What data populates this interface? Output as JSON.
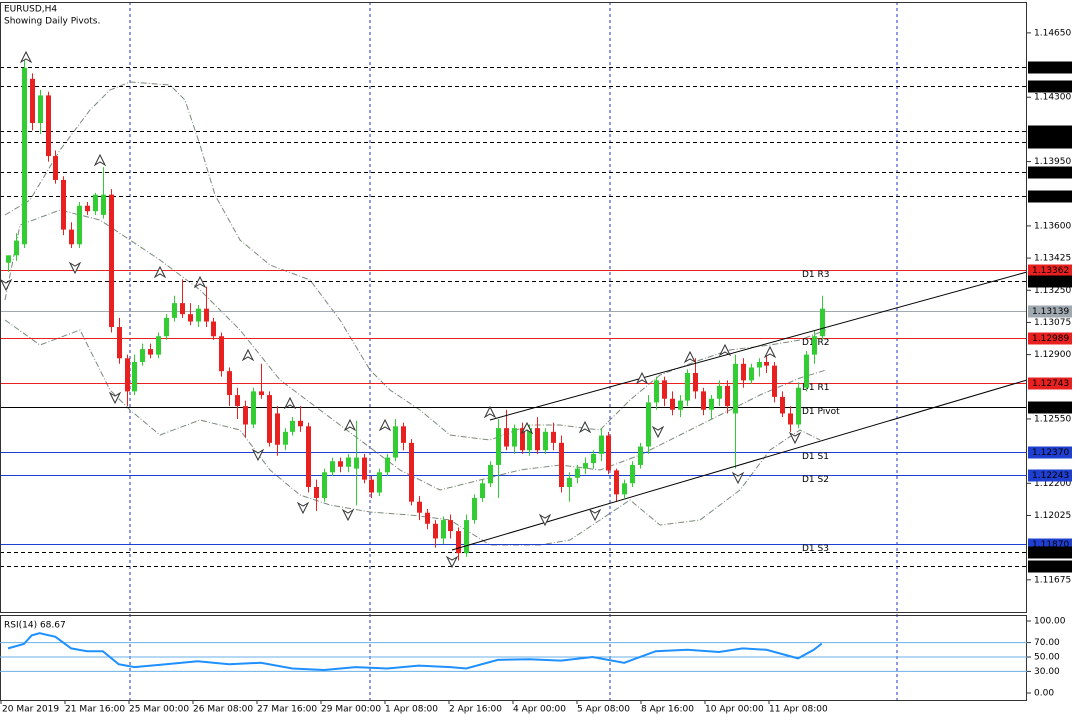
{
  "chart_data": {
    "type": "candlestick",
    "title": "EURUSD,H4",
    "subtitle": "Showing Daily Pivots.",
    "up_color": "#32cd32",
    "down_color": "#e8201f",
    "ylim": [
      1.115,
      1.14818
    ],
    "yticks": [
      {
        "value": 1.1465,
        "label": "1.14650"
      },
      {
        "value": 1.143,
        "label": "1.14300"
      },
      {
        "value": 1.1395,
        "label": "1.13950"
      },
      {
        "value": 1.136,
        "label": "1.13600"
      },
      {
        "value": 1.13425,
        "label": "1.13425"
      },
      {
        "value": 1.1325,
        "label": "1.13250"
      },
      {
        "value": 1.13075,
        "label": "1.13075"
      },
      {
        "value": 1.129,
        "label": "1.12900"
      },
      {
        "value": 1.1255,
        "label": "1.12550"
      },
      {
        "value": 1.122,
        "label": "1.12200"
      },
      {
        "value": 1.12025,
        "label": "1.12025"
      },
      {
        "value": 1.11675,
        "label": "1.11675"
      }
    ],
    "xlabels": [
      "20 Mar 2019",
      "21 Mar 16:00",
      "25 Mar 00:00",
      "26 Mar 08:00",
      "27 Mar 16:00",
      "29 Mar 00:00",
      "1 Apr 08:00",
      "2 Apr 16:00",
      "4 Apr 00:00",
      "5 Apr 08:00",
      "8 Apr 16:00",
      "10 Apr 00:00",
      "11 Apr 08:00"
    ],
    "levels": [
      {
        "value": 1.14464,
        "label": "1.14464",
        "color": "#000000",
        "style": "dash"
      },
      {
        "value": 1.14362,
        "label": "1.14362",
        "color": "#000000",
        "style": "dash"
      },
      {
        "value": 1.14115,
        "label": "1.14115",
        "color": "#000000",
        "style": "dash"
      },
      {
        "value": 1.14054,
        "label": "1.14054",
        "color": "#000000",
        "style": "dash"
      },
      {
        "value": 1.13895,
        "label": "1.13895",
        "color": "#000000",
        "style": "dash"
      },
      {
        "value": 1.13765,
        "label": "1.13765",
        "color": "#000000",
        "style": "dash"
      },
      {
        "value": 1.13362,
        "label": "1.13362",
        "color": "#e8201f",
        "style": "solid",
        "name": "D1 R3"
      },
      {
        "value": 1.13301,
        "label": "1.13301",
        "color": "#000000",
        "style": "dash"
      },
      {
        "value": 1.13139,
        "label": "1.13139",
        "color": "#a0a8b0",
        "style": "solid"
      },
      {
        "value": 1.12989,
        "label": "1.12989",
        "color": "#e8201f",
        "style": "solid",
        "name": "D1 R2"
      },
      {
        "value": 1.12743,
        "label": "1.12743",
        "color": "#e8201f",
        "style": "solid",
        "name": "D1 R1"
      },
      {
        "value": 1.12616,
        "label": "1.12616",
        "color": "#000000",
        "style": "solid",
        "name": "D1 Pivot"
      },
      {
        "value": 1.1237,
        "label": "1.12370",
        "color": "#1f3fd0",
        "style": "solid",
        "name": "D1 S1"
      },
      {
        "value": 1.12243,
        "label": "1.12243",
        "color": "#1f3fd0",
        "style": "solid",
        "name": "D1 S2"
      },
      {
        "value": 1.1187,
        "label": "1.11870",
        "color": "#1f3fd0",
        "style": "solid",
        "name": "D1 S3"
      },
      {
        "value": 1.11826,
        "label": "1.11826",
        "color": "#000000",
        "style": "dash"
      },
      {
        "value": 1.11752,
        "label": "1.11752",
        "color": "#000000",
        "style": "dash"
      }
    ],
    "candles": [
      [
        1.134,
        1.1344,
        1.1335,
        1.1344
      ],
      [
        1.1344,
        1.1356,
        1.1341,
        1.1352
      ],
      [
        1.135,
        1.145,
        1.1348,
        1.1446
      ],
      [
        1.144,
        1.1443,
        1.1412,
        1.1416
      ],
      [
        1.1416,
        1.1434,
        1.141,
        1.1431
      ],
      [
        1.1431,
        1.1433,
        1.1395,
        1.1398
      ],
      [
        1.1398,
        1.1401,
        1.1383,
        1.1385
      ],
      [
        1.1385,
        1.1387,
        1.1355,
        1.1358
      ],
      [
        1.1358,
        1.1362,
        1.1348,
        1.135
      ],
      [
        1.135,
        1.1373,
        1.1348,
        1.1371
      ],
      [
        1.1371,
        1.1373,
        1.1366,
        1.1368
      ],
      [
        1.1368,
        1.1378,
        1.1366,
        1.1377
      ],
      [
        1.1366,
        1.1392,
        1.1364,
        1.1377
      ],
      [
        1.1377,
        1.138,
        1.1302,
        1.1305
      ],
      [
        1.1305,
        1.131,
        1.1285,
        1.1288
      ],
      [
        1.1288,
        1.129,
        1.1262,
        1.127
      ],
      [
        1.127,
        1.129,
        1.1268,
        1.1286
      ],
      [
        1.1286,
        1.1296,
        1.1284,
        1.1293
      ],
      [
        1.1293,
        1.1296,
        1.1288,
        1.129
      ],
      [
        1.129,
        1.1302,
        1.1288,
        1.13
      ],
      [
        1.13,
        1.1312,
        1.1298,
        1.131
      ],
      [
        1.131,
        1.1322,
        1.1308,
        1.1318
      ],
      [
        1.1318,
        1.1331,
        1.131,
        1.1312
      ],
      [
        1.1312,
        1.1318,
        1.1306,
        1.1308
      ],
      [
        1.1308,
        1.1317,
        1.1305,
        1.1315
      ],
      [
        1.1315,
        1.1327,
        1.1305,
        1.1308
      ],
      [
        1.1308,
        1.131,
        1.1298,
        1.13
      ],
      [
        1.13,
        1.1302,
        1.1278,
        1.1281
      ],
      [
        1.1281,
        1.1283,
        1.1262,
        1.1268
      ],
      [
        1.1268,
        1.1272,
        1.1255,
        1.1262
      ],
      [
        1.1262,
        1.1265,
        1.1245,
        1.1252
      ],
      [
        1.1252,
        1.1272,
        1.125,
        1.127
      ],
      [
        1.127,
        1.1285,
        1.1266,
        1.1268
      ],
      [
        1.1268,
        1.127,
        1.124,
        1.1242
      ],
      [
        1.1258,
        1.1262,
        1.1235,
        1.1241
      ],
      [
        1.1241,
        1.125,
        1.1238,
        1.1248
      ],
      [
        1.1248,
        1.1256,
        1.1246,
        1.1254
      ],
      [
        1.1254,
        1.1262,
        1.1248,
        1.1251
      ],
      [
        1.1251,
        1.1253,
        1.1215,
        1.1218
      ],
      [
        1.1218,
        1.1222,
        1.1205,
        1.1212
      ],
      [
        1.1212,
        1.1228,
        1.121,
        1.1226
      ],
      [
        1.1226,
        1.1234,
        1.1224,
        1.1232
      ],
      [
        1.1232,
        1.1234,
        1.1226,
        1.1229
      ],
      [
        1.1229,
        1.1236,
        1.1226,
        1.1234
      ],
      [
        1.1228,
        1.1254,
        1.1208,
        1.1234
      ],
      [
        1.1234,
        1.1236,
        1.122,
        1.1222
      ],
      [
        1.1222,
        1.1224,
        1.1212,
        1.1215
      ],
      [
        1.1215,
        1.1228,
        1.1213,
        1.1226
      ],
      [
        1.1226,
        1.1236,
        1.1224,
        1.1234
      ],
      [
        1.1234,
        1.1255,
        1.1232,
        1.1251
      ],
      [
        1.1251,
        1.1253,
        1.1238,
        1.1242
      ],
      [
        1.1242,
        1.1244,
        1.1208,
        1.121
      ],
      [
        1.121,
        1.1213,
        1.12,
        1.1204
      ],
      [
        1.1204,
        1.1206,
        1.1195,
        1.1198
      ],
      [
        1.1198,
        1.12,
        1.1185,
        1.119
      ],
      [
        1.119,
        1.1202,
        1.1187,
        1.12
      ],
      [
        1.12,
        1.1203,
        1.119,
        1.1194
      ],
      [
        1.1194,
        1.1196,
        1.1178,
        1.1182
      ],
      [
        1.1182,
        1.1203,
        1.118,
        1.12
      ],
      [
        1.12,
        1.1214,
        1.1198,
        1.1212
      ],
      [
        1.1212,
        1.1222,
        1.121,
        1.122
      ],
      [
        1.122,
        1.1232,
        1.1218,
        1.123
      ],
      [
        1.123,
        1.1255,
        1.1212,
        1.125
      ],
      [
        1.125,
        1.126,
        1.1238,
        1.124
      ],
      [
        1.124,
        1.1252,
        1.1236,
        1.125
      ],
      [
        1.125,
        1.1253,
        1.1236,
        1.1238
      ],
      [
        1.1238,
        1.1252,
        1.1235,
        1.125
      ],
      [
        1.125,
        1.1256,
        1.1236,
        1.1238
      ],
      [
        1.1238,
        1.125,
        1.1236,
        1.1248
      ],
      [
        1.1248,
        1.1253,
        1.1238,
        1.1242
      ],
      [
        1.1242,
        1.1246,
        1.1215,
        1.1218
      ],
      [
        1.1218,
        1.1226,
        1.121,
        1.1223
      ],
      [
        1.1223,
        1.123,
        1.122,
        1.1228
      ],
      [
        1.1228,
        1.1234,
        1.1225,
        1.1231
      ],
      [
        1.1231,
        1.1238,
        1.1228,
        1.1236
      ],
      [
        1.1236,
        1.125,
        1.1232,
        1.1246
      ],
      [
        1.1246,
        1.1248,
        1.1225,
        1.1227
      ],
      [
        1.1227,
        1.1228,
        1.121,
        1.1214
      ],
      [
        1.1214,
        1.1222,
        1.1212,
        1.122
      ],
      [
        1.122,
        1.1232,
        1.1218,
        1.123
      ],
      [
        1.123,
        1.1242,
        1.1228,
        1.124
      ],
      [
        1.124,
        1.1268,
        1.1236,
        1.1264
      ],
      [
        1.1264,
        1.1278,
        1.126,
        1.1276
      ],
      [
        1.1276,
        1.1278,
        1.1262,
        1.1266
      ],
      [
        1.1266,
        1.127,
        1.1257,
        1.126
      ],
      [
        1.126,
        1.1268,
        1.1256,
        1.1265
      ],
      [
        1.1265,
        1.1282,
        1.1262,
        1.128
      ],
      [
        1.128,
        1.1288,
        1.1266,
        1.127
      ],
      [
        1.127,
        1.1272,
        1.1257,
        1.126
      ],
      [
        1.126,
        1.1268,
        1.1255,
        1.1266
      ],
      [
        1.1266,
        1.1276,
        1.1262,
        1.1273
      ],
      [
        1.1273,
        1.1276,
        1.1258,
        1.1262
      ],
      [
        1.1258,
        1.129,
        1.1228,
        1.1285
      ],
      [
        1.1285,
        1.1288,
        1.1272,
        1.1276
      ],
      [
        1.1276,
        1.1285,
        1.1274,
        1.1283
      ],
      [
        1.1283,
        1.1288,
        1.1278,
        1.1286
      ],
      [
        1.1286,
        1.129,
        1.128,
        1.1284
      ],
      [
        1.1284,
        1.1286,
        1.1264,
        1.1267
      ],
      [
        1.1267,
        1.127,
        1.1256,
        1.1258
      ],
      [
        1.1258,
        1.1262,
        1.1248,
        1.1252
      ],
      [
        1.1252,
        1.1275,
        1.125,
        1.1272
      ],
      [
        1.1272,
        1.1292,
        1.127,
        1.129
      ],
      [
        1.129,
        1.1303,
        1.1285,
        1.13
      ],
      [
        1.13,
        1.1322,
        1.1298,
        1.1315
      ]
    ],
    "rsi": {
      "title": "RSI(14) 68.67",
      "color": "#1e90ff",
      "ylim": [
        0,
        100
      ],
      "yticks": [
        {
          "value": 100,
          "label": "100.00"
        },
        {
          "value": 70,
          "label": "70.00"
        },
        {
          "value": 50,
          "label": "50.00"
        },
        {
          "value": 30,
          "label": "30.00"
        },
        {
          "value": 0,
          "label": "0.00"
        }
      ],
      "levels": [
        70,
        50,
        30
      ],
      "x": [
        0,
        2,
        3,
        4,
        6,
        8,
        10,
        12,
        14,
        16,
        20,
        24,
        28,
        32,
        36,
        40,
        44,
        48,
        52,
        56,
        58,
        62,
        66,
        70,
        74,
        78,
        82,
        86,
        90,
        93,
        96,
        100,
        102,
        103
      ],
      "values": [
        62,
        68,
        80,
        83,
        78,
        62,
        58,
        58,
        40,
        36,
        40,
        44,
        40,
        42,
        34,
        32,
        36,
        34,
        38,
        36,
        34,
        46,
        47,
        45,
        50,
        42,
        58,
        60,
        57,
        62,
        60,
        48,
        60,
        68.67
      ]
    }
  }
}
